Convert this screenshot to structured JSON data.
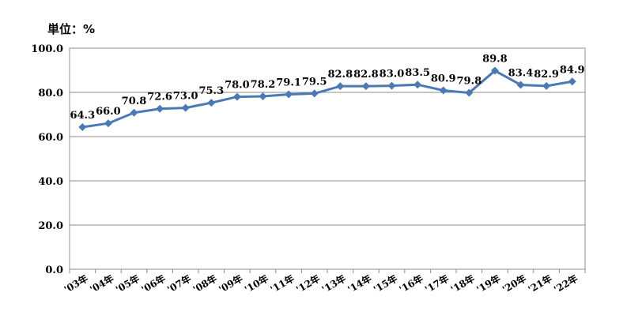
{
  "unit_label": "単位：%",
  "chart_data": {
    "type": "line",
    "title": "",
    "xlabel": "",
    "ylabel": "",
    "ylim": [
      0,
      100
    ],
    "yticks": [
      "0.0",
      "20.0",
      "40.0",
      "60.0",
      "80.0",
      "100.0"
    ],
    "grid": true,
    "legend": "none",
    "categories": [
      "'03年",
      "'04年",
      "'05年",
      "'06年",
      "'07年",
      "'08年",
      "'09年",
      "'10年",
      "'11年",
      "'12年",
      "'13年",
      "'14年",
      "'15年",
      "'16年",
      "'17年",
      "'18年",
      "'19年",
      "'20年",
      "'21年",
      "'22年"
    ],
    "series": [
      {
        "values": [
          64.3,
          66.0,
          70.8,
          72.6,
          73.0,
          75.3,
          78.0,
          78.2,
          79.1,
          79.5,
          82.8,
          82.8,
          83.0,
          83.5,
          80.9,
          79.8,
          89.8,
          83.4,
          82.9,
          84.9
        ],
        "labels": [
          "64.3",
          "66.0",
          "70.8",
          "72.6",
          "73.0",
          "75.3",
          "78.0",
          "78.2",
          "79.1",
          "79.5",
          "82.8",
          "82.8",
          "83.0",
          "83.5",
          "80.9",
          "79.8",
          "89.8",
          "83.4",
          "82.9",
          "84.9"
        ],
        "color": "#4a7ab5"
      }
    ]
  }
}
